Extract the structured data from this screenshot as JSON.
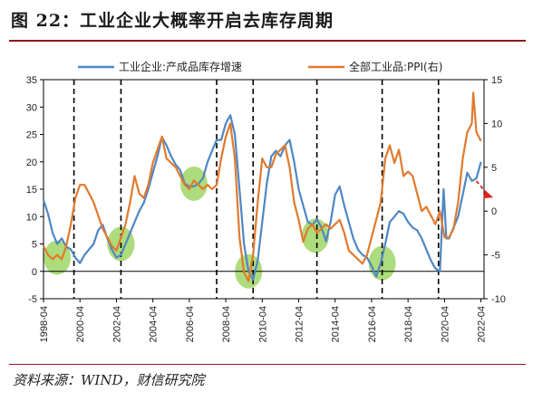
{
  "figure": {
    "title": "图 22：工业企业大概率开启去库存周期",
    "source": "资料来源：WIND，财信研究院"
  },
  "colors": {
    "inventory": "#4f87c4",
    "ppi": "#e07a2e",
    "highlight": "#92d050",
    "arrow": "#e02020",
    "title_rule": "#8b1a1a"
  },
  "chart_data": {
    "type": "line",
    "legend_position": "top",
    "grid": false,
    "x_tick_labels": [
      "1998-04",
      "2000-04",
      "2002-04",
      "2004-04",
      "2006-04",
      "2008-04",
      "2010-04",
      "2012-04",
      "2014-04",
      "2016-04",
      "2018-04",
      "2020-04",
      "2022-04"
    ],
    "x_range": [
      1998.25,
      2022.42
    ],
    "y_left": {
      "ticks": [
        "-5",
        "0",
        "5",
        "10",
        "15",
        "20",
        "25",
        "30",
        "35"
      ],
      "range": [
        -5,
        35
      ]
    },
    "y_right": {
      "ticks": [
        "-10",
        "-5",
        "0",
        "5",
        "10",
        "15"
      ],
      "range": [
        -10,
        15
      ]
    },
    "cycle_markers": [
      1999.92,
      2002.5,
      2007.75,
      2009.75,
      2013.25,
      2016.83,
      2019.92
    ],
    "highlighted_regions": [
      {
        "x": 1999.0,
        "y": 2.5
      },
      {
        "x": 2002.5,
        "y": 5.0
      },
      {
        "x": 2006.5,
        "y": 16.0
      },
      {
        "x": 2009.5,
        "y": 0.0
      },
      {
        "x": 2013.17,
        "y": 6.5
      },
      {
        "x": 2016.83,
        "y": 1.5
      }
    ],
    "trend_arrow": {
      "from": [
        2022.0,
        16.5
      ],
      "to": [
        2022.92,
        13.5
      ]
    },
    "series": [
      {
        "name": "工业企业:产成品库存增速",
        "axis": "left",
        "points": [
          [
            1998.25,
            13
          ],
          [
            1998.5,
            10.5
          ],
          [
            1998.75,
            7
          ],
          [
            1999.0,
            5
          ],
          [
            1999.25,
            6
          ],
          [
            1999.5,
            4.5
          ],
          [
            1999.75,
            4
          ],
          [
            2000.0,
            2.5
          ],
          [
            2000.25,
            1.5
          ],
          [
            2000.5,
            3
          ],
          [
            2000.75,
            4
          ],
          [
            2001.0,
            5
          ],
          [
            2001.25,
            7.5
          ],
          [
            2001.5,
            8.5
          ],
          [
            2001.75,
            6
          ],
          [
            2002.0,
            4
          ],
          [
            2002.25,
            2.5
          ],
          [
            2002.5,
            3
          ],
          [
            2002.75,
            5
          ],
          [
            2003.0,
            7
          ],
          [
            2003.25,
            9
          ],
          [
            2003.5,
            11
          ],
          [
            2003.75,
            12.5
          ],
          [
            2004.0,
            15
          ],
          [
            2004.25,
            18
          ],
          [
            2004.5,
            21
          ],
          [
            2004.75,
            24.5
          ],
          [
            2005.0,
            23
          ],
          [
            2005.25,
            21
          ],
          [
            2005.5,
            19.5
          ],
          [
            2005.75,
            18.5
          ],
          [
            2006.0,
            16
          ],
          [
            2006.25,
            15.5
          ],
          [
            2006.5,
            15.5
          ],
          [
            2006.75,
            16
          ],
          [
            2007.0,
            17
          ],
          [
            2007.25,
            20
          ],
          [
            2007.5,
            22
          ],
          [
            2007.75,
            24
          ],
          [
            2008.0,
            24
          ],
          [
            2008.25,
            27
          ],
          [
            2008.5,
            28.5
          ],
          [
            2008.75,
            25
          ],
          [
            2009.0,
            15
          ],
          [
            2009.25,
            5
          ],
          [
            2009.5,
            0
          ],
          [
            2009.75,
            -1.5
          ],
          [
            2010.0,
            2
          ],
          [
            2010.25,
            9
          ],
          [
            2010.5,
            16
          ],
          [
            2010.75,
            21
          ],
          [
            2011.0,
            22
          ],
          [
            2011.25,
            21
          ],
          [
            2011.5,
            23
          ],
          [
            2011.75,
            24
          ],
          [
            2012.0,
            20
          ],
          [
            2012.25,
            15
          ],
          [
            2012.5,
            12
          ],
          [
            2012.75,
            9
          ],
          [
            2013.0,
            8.5
          ],
          [
            2013.25,
            9.5
          ],
          [
            2013.5,
            8
          ],
          [
            2013.75,
            5.5
          ],
          [
            2014.0,
            9
          ],
          [
            2014.25,
            14
          ],
          [
            2014.5,
            15.5
          ],
          [
            2014.75,
            12
          ],
          [
            2015.0,
            9
          ],
          [
            2015.25,
            6
          ],
          [
            2015.5,
            4
          ],
          [
            2015.75,
            3
          ],
          [
            2016.0,
            2.5
          ],
          [
            2016.25,
            1
          ],
          [
            2016.5,
            -1
          ],
          [
            2016.75,
            1.5
          ],
          [
            2017.0,
            5
          ],
          [
            2017.25,
            9
          ],
          [
            2017.5,
            10
          ],
          [
            2017.75,
            11
          ],
          [
            2018.0,
            10.5
          ],
          [
            2018.25,
            9
          ],
          [
            2018.5,
            8
          ],
          [
            2018.75,
            7.5
          ],
          [
            2019.0,
            6
          ],
          [
            2019.25,
            4
          ],
          [
            2019.5,
            2
          ],
          [
            2019.75,
            0.5
          ],
          [
            2020.0,
            0
          ],
          [
            2020.2,
            15
          ],
          [
            2020.35,
            6
          ],
          [
            2020.5,
            6
          ],
          [
            2020.75,
            8
          ],
          [
            2021.0,
            10
          ],
          [
            2021.25,
            14
          ],
          [
            2021.5,
            18
          ],
          [
            2021.75,
            16.5
          ],
          [
            2022.0,
            17
          ],
          [
            2022.25,
            20
          ]
        ]
      },
      {
        "name": "全部工业品:PPI(右)",
        "axis": "right",
        "points": [
          [
            1998.25,
            -4
          ],
          [
            1998.5,
            -5
          ],
          [
            1998.75,
            -5.5
          ],
          [
            1999.0,
            -5
          ],
          [
            1999.25,
            -5.5
          ],
          [
            1999.5,
            -4
          ],
          [
            1999.75,
            -1.5
          ],
          [
            2000.0,
            1.5
          ],
          [
            2000.25,
            3
          ],
          [
            2000.5,
            3
          ],
          [
            2000.75,
            2
          ],
          [
            2001.0,
            1
          ],
          [
            2001.25,
            -0.5
          ],
          [
            2001.5,
            -2
          ],
          [
            2001.75,
            -3
          ],
          [
            2002.0,
            -4
          ],
          [
            2002.25,
            -4.5
          ],
          [
            2002.5,
            -3
          ],
          [
            2002.75,
            -1.5
          ],
          [
            2003.0,
            1
          ],
          [
            2003.25,
            4
          ],
          [
            2003.5,
            2
          ],
          [
            2003.75,
            1.5
          ],
          [
            2004.0,
            3
          ],
          [
            2004.25,
            5.5
          ],
          [
            2004.5,
            7
          ],
          [
            2004.75,
            8.5
          ],
          [
            2005.0,
            6
          ],
          [
            2005.25,
            5.5
          ],
          [
            2005.5,
            5
          ],
          [
            2005.75,
            4
          ],
          [
            2006.0,
            3
          ],
          [
            2006.25,
            2.5
          ],
          [
            2006.5,
            3.5
          ],
          [
            2006.75,
            3
          ],
          [
            2007.0,
            2.5
          ],
          [
            2007.25,
            3
          ],
          [
            2007.5,
            2.5
          ],
          [
            2007.75,
            3
          ],
          [
            2008.0,
            6
          ],
          [
            2008.25,
            8.5
          ],
          [
            2008.5,
            10
          ],
          [
            2008.75,
            6
          ],
          [
            2009.0,
            -3
          ],
          [
            2009.25,
            -7
          ],
          [
            2009.5,
            -8
          ],
          [
            2009.75,
            -5
          ],
          [
            2010.0,
            1
          ],
          [
            2010.25,
            6
          ],
          [
            2010.5,
            5
          ],
          [
            2010.75,
            5
          ],
          [
            2011.0,
            6.5
          ],
          [
            2011.25,
            7
          ],
          [
            2011.5,
            7.5
          ],
          [
            2011.75,
            5
          ],
          [
            2012.0,
            1
          ],
          [
            2012.25,
            -1
          ],
          [
            2012.5,
            -3.5
          ],
          [
            2012.75,
            -2
          ],
          [
            2013.0,
            -1.5
          ],
          [
            2013.25,
            -2.5
          ],
          [
            2013.5,
            -2
          ],
          [
            2013.75,
            -1.5
          ],
          [
            2014.0,
            -2
          ],
          [
            2014.25,
            -1.5
          ],
          [
            2014.5,
            -1
          ],
          [
            2014.75,
            -2.5
          ],
          [
            2015.0,
            -4.5
          ],
          [
            2015.25,
            -5
          ],
          [
            2015.5,
            -5.5
          ],
          [
            2015.75,
            -6
          ],
          [
            2016.0,
            -5
          ],
          [
            2016.25,
            -3
          ],
          [
            2016.5,
            -1
          ],
          [
            2016.75,
            1
          ],
          [
            2017.0,
            6
          ],
          [
            2017.25,
            7.5
          ],
          [
            2017.5,
            5.5
          ],
          [
            2017.75,
            7
          ],
          [
            2018.0,
            4
          ],
          [
            2018.25,
            4.5
          ],
          [
            2018.5,
            4
          ],
          [
            2018.75,
            2
          ],
          [
            2019.0,
            0
          ],
          [
            2019.25,
            0.5
          ],
          [
            2019.5,
            -0.5
          ],
          [
            2019.75,
            -1.5
          ],
          [
            2020.0,
            0
          ],
          [
            2020.25,
            -3
          ],
          [
            2020.5,
            -3
          ],
          [
            2020.75,
            -2
          ],
          [
            2021.0,
            1
          ],
          [
            2021.25,
            6
          ],
          [
            2021.5,
            9
          ],
          [
            2021.75,
            10
          ],
          [
            2021.83,
            13.5
          ],
          [
            2022.0,
            9
          ],
          [
            2022.25,
            8
          ]
        ]
      }
    ]
  }
}
